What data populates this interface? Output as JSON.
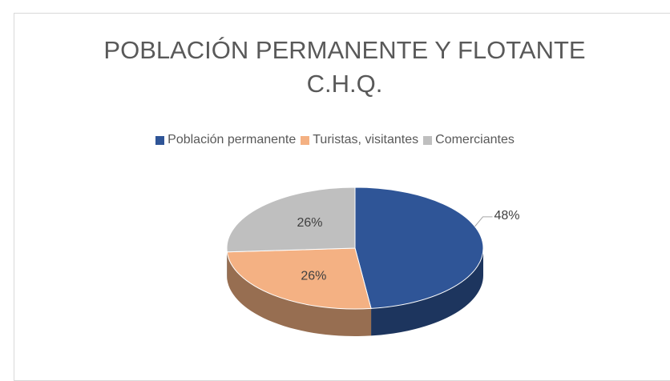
{
  "chart_data": {
    "type": "pie3d",
    "title": "POBLACIÓN PERMANENTE Y FLOTANTE C.H.Q.",
    "categories": [
      "Población permanente",
      "Turistas, visitantes",
      "Comerciantes"
    ],
    "values": [
      48,
      26,
      26
    ],
    "value_labels": [
      "48%",
      "26%",
      "26%"
    ],
    "colors": [
      "#2f5597",
      "#f4b183",
      "#bfbfbf"
    ],
    "legend": "top"
  }
}
